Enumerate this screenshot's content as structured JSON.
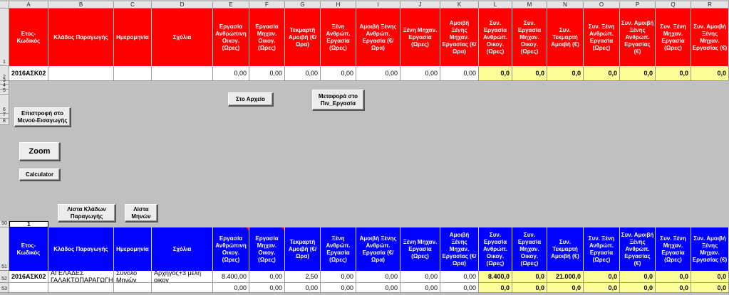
{
  "columns": [
    "A",
    "B",
    "C",
    "D",
    "E",
    "F",
    "G",
    "H",
    "I",
    "J",
    "K",
    "L",
    "M",
    "N",
    "O",
    "P",
    "Q",
    "R"
  ],
  "rows": {
    "r1": "1",
    "r2": "2",
    "r3": "3",
    "r4": "4",
    "r5": "5",
    "r6": "6",
    "r7": "7",
    "r8": "8",
    "r50": "50",
    "r51": "51",
    "r52": "52",
    "r53": "53"
  },
  "top_headers": [
    "Ετος-Κωδικός",
    "Κλάδος Παραγωγής",
    "Ημερομηνία",
    "Σχόλια",
    "Εργασία Ανθρώπινη Οικογ. (Ωρες)",
    "Εργασία Μηχαν. Οικογ. (Ωρες)",
    "Τεκμαρτή Αμοιβή (€/Ωρα)",
    "Ξένη Ανθρώπ. Εργασία (Ωρες)",
    "Αμοιβή Ξένης Ανθρώπ. Εργασία (€/Ωρα)",
    "Ξένη Μηχαν. Εργασία (Ωρες)",
    "Αμοιβή Ξένης Μηχαν. Εργασίας (€/Ωρα)",
    "Συν. Εργασία Ανθρώπ. Οικογ. (Ωρες)",
    "Συν. Εργασία Μηχαν. Οικογ. (Ωρες)",
    "Συν. Τεκμαρτή Αμοιβή (€)",
    "Συν. Ξένη Ανθρώπ. Εργασία (Ωρες)",
    "Συν. Αμοιβή Ξένης Ανθρώπ. Εργασίας (€)",
    "Συν. Ξένη Μηχαν. Εργασία (Ωρες)",
    "Συν. Αμοιβή Ξένης Μηχαν. Εργασίας (€)"
  ],
  "top_row": [
    "2016ΑΣΚ02",
    "",
    "",
    "",
    "0,00",
    "0,00",
    "0,00",
    "0,00",
    "0,00",
    "0,00",
    "0,00",
    "0,0",
    "0,0",
    "0,0",
    "0,0",
    "0,0",
    "0,0",
    "0,0"
  ],
  "bottom_headers": [
    "Ετος-Κωδικός",
    "Κλάδος Παραγωγής",
    "Ημερομηνία",
    "Σχόλια",
    "Εργασία Ανθρώπινη Οικογ. (Ωρες)",
    "Εργασία Μηχαν. Οικογ. (Ωρες)",
    "Τεκμαρτή Αμοιβή (€/Ωρα)",
    "Ξένη Ανθρώπ. Εργασία (Ωρες)",
    "Αμοιβή Ξένης Ανθρώπ. Εργασία (€/Ωρα)",
    "Ξένη Μηχαν. Εργασία (Ωρες)",
    "Αμοιβή Ξένης Μηχαν. Εργασίας (€/Ωρα)",
    "Συν. Εργασία Ανθρώπ. Οικογ. (Ωρες)",
    "Συν. Εργασία Μηχαν. Οικογ. (Ωρες)",
    "Συν. Τεκμαρτή Αμοιβή (€)",
    "Συν. Ξένη Ανθρώπ. Εργασία (Ωρες)",
    "Συν. Αμοιβή Ξένης Ανθρώπ. Εργασίας (€)",
    "Συν. Ξένη Μηχαν. Εργασία (Ωρες)",
    "Συν. Αμοιβή Ξένης Μηχαν. Εργασίας (€)"
  ],
  "row52": [
    "2016ΑΣΚ02",
    "ΑΓΕΛΑΔΕΣ ΓΑΛΑΚΤΟΠΑΡΑΓΩΓΗΣ",
    "Σύνολο Μηνών",
    "Αρχηγός+3 μέλη οικογ",
    "8.400,00",
    "0,00",
    "2,50",
    "0,00",
    "0,00",
    "0,00",
    "0,00",
    "8.400,0",
    "0,0",
    "21.000,0",
    "0,0",
    "0,0",
    "0,0",
    "0,0"
  ],
  "row53": [
    "",
    "",
    "",
    "",
    "0,00",
    "0,00",
    "0,00",
    "0,00",
    "0,00",
    "0,00",
    "0,00",
    "0,0",
    "0,0",
    "0,0",
    "0,0",
    "0,0",
    "0,0",
    "0,0"
  ],
  "row50_value": "1",
  "buttons": {
    "archive": "Στο Αρχείο",
    "transfer": "Μεταφορά στο Πιν_Εργασία",
    "back": "Επιστροφή στο Μενού-Εισαγωγής",
    "zoom": "Zoom",
    "calculator": "Calculator",
    "branch_list": "Λίστα Κλάδων Παραγωγής",
    "month_list": "Λίστα Μηνών"
  },
  "colors": {
    "top_header": "#ff0000",
    "bottom_header": "#0000ff",
    "totals": "#ffff99",
    "background": "#c0c0c0"
  }
}
